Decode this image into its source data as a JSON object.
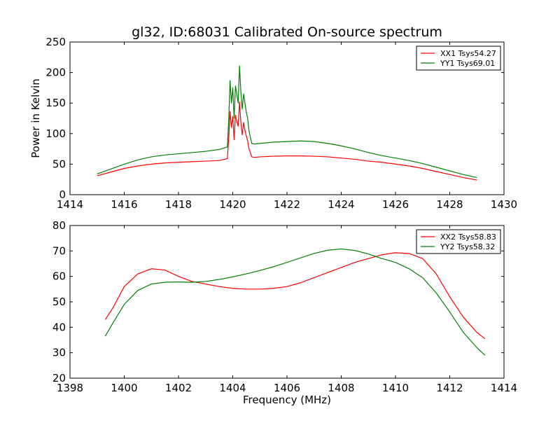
{
  "figure": {
    "title": "gl32, ID:68031 Calibrated On-source spectrum"
  },
  "chart_data": [
    {
      "type": "line",
      "ylabel": "Power in Kelvin",
      "xlabel": "",
      "xlim": [
        1414,
        1430
      ],
      "ylim": [
        0,
        250
      ],
      "xticks": [
        1414,
        1416,
        1418,
        1420,
        1422,
        1424,
        1426,
        1428,
        1430
      ],
      "yticks": [
        0,
        50,
        100,
        150,
        200,
        250
      ],
      "legend_position": "top-right",
      "series": [
        {
          "name": "XX1 Tsys54.27",
          "color": "#ff0000",
          "x": [
            1415,
            1415.5,
            1416,
            1416.5,
            1417,
            1417.5,
            1418,
            1418.5,
            1419,
            1419.5,
            1419.8,
            1419.85,
            1419.9,
            1419.95,
            1420.0,
            1420.05,
            1420.1,
            1420.15,
            1420.2,
            1420.25,
            1420.3,
            1420.35,
            1420.4,
            1420.45,
            1420.5,
            1420.55,
            1420.6,
            1420.7,
            1420.8,
            1421,
            1421.5,
            1422,
            1422.5,
            1423,
            1423.5,
            1424,
            1424.5,
            1425,
            1425.5,
            1426,
            1426.5,
            1427,
            1427.5,
            1428,
            1428.5,
            1429
          ],
          "y": [
            31,
            37,
            43,
            47,
            50,
            52,
            53,
            54,
            55,
            56,
            59,
            90,
            136,
            110,
            128,
            90,
            130,
            120,
            112,
            152,
            118,
            98,
            118,
            105,
            96,
            88,
            75,
            62,
            61,
            62,
            63,
            63.5,
            63.5,
            63,
            62,
            60,
            58,
            55,
            53,
            50,
            47,
            43,
            38,
            33,
            28,
            24
          ]
        },
        {
          "name": "YY1 Tsys69.01",
          "color": "#008000",
          "x": [
            1415,
            1415.5,
            1416,
            1416.5,
            1417,
            1417.5,
            1418,
            1418.5,
            1419,
            1419.5,
            1419.8,
            1419.85,
            1419.9,
            1419.95,
            1420.0,
            1420.05,
            1420.1,
            1420.15,
            1420.2,
            1420.25,
            1420.3,
            1420.35,
            1420.4,
            1420.45,
            1420.5,
            1420.55,
            1420.6,
            1420.7,
            1420.8,
            1421,
            1421.5,
            1422,
            1422.5,
            1423,
            1423.5,
            1424,
            1424.5,
            1425,
            1425.5,
            1426,
            1426.5,
            1427,
            1427.5,
            1428,
            1428.5,
            1429
          ],
          "y": [
            34,
            42,
            50,
            57,
            62,
            65,
            67,
            69,
            71,
            74,
            78,
            120,
            187,
            150,
            175,
            125,
            178,
            165,
            150,
            211,
            168,
            140,
            165,
            150,
            135,
            125,
            104,
            84,
            83,
            84,
            86,
            87,
            88,
            87,
            84,
            80,
            75,
            69,
            64,
            60,
            56,
            51,
            45,
            39,
            33,
            28
          ]
        }
      ]
    },
    {
      "type": "line",
      "ylabel": "",
      "xlabel": "Frequency (MHz)",
      "xlim": [
        1398,
        1414
      ],
      "ylim": [
        20,
        80
      ],
      "xticks": [
        1398,
        1400,
        1402,
        1404,
        1406,
        1408,
        1410,
        1412,
        1414
      ],
      "yticks": [
        20,
        30,
        40,
        50,
        60,
        70,
        80
      ],
      "legend_position": "top-right",
      "series": [
        {
          "name": "XX2 Tsys58.83",
          "color": "#ff0000",
          "x": [
            1399.3,
            1399.6,
            1400,
            1400.5,
            1401,
            1401.5,
            1402,
            1402.5,
            1403,
            1403.5,
            1404,
            1404.5,
            1405,
            1405.5,
            1406,
            1406.5,
            1407,
            1407.5,
            1408,
            1408.5,
            1409,
            1409.5,
            1410,
            1410.5,
            1411,
            1411.5,
            1412,
            1412.5,
            1413,
            1413.3
          ],
          "y": [
            43,
            48,
            56,
            61,
            63,
            62.5,
            60,
            58,
            57,
            56,
            55.3,
            55,
            55,
            55.3,
            56,
            57.5,
            59.5,
            61.5,
            63.5,
            65.5,
            67,
            68.5,
            69.3,
            69,
            67,
            61,
            52,
            44,
            38,
            35.5
          ]
        },
        {
          "name": "YY2 Tsys58.32",
          "color": "#008000",
          "x": [
            1399.3,
            1399.6,
            1400,
            1400.5,
            1401,
            1401.5,
            1402,
            1402.5,
            1403,
            1403.5,
            1404,
            1404.5,
            1405,
            1405.5,
            1406,
            1406.5,
            1407,
            1407.5,
            1408,
            1408.5,
            1409,
            1409.5,
            1410,
            1410.5,
            1411,
            1411.5,
            1412,
            1412.5,
            1413,
            1413.3
          ],
          "y": [
            36.5,
            42,
            49,
            54.5,
            57,
            57.7,
            57.8,
            57.7,
            58,
            58.8,
            59.8,
            61,
            62.3,
            63.8,
            65.5,
            67.3,
            69,
            70.3,
            70.8,
            70.2,
            68.8,
            67,
            65.5,
            63,
            59.5,
            53.5,
            46,
            38,
            32,
            29
          ]
        }
      ]
    }
  ]
}
